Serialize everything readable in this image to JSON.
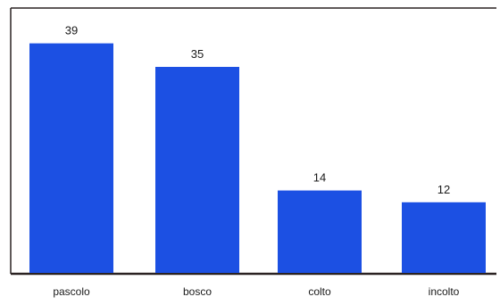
{
  "chart_data": {
    "type": "bar",
    "categories": [
      "pascolo",
      "bosco",
      "colto",
      "incolto"
    ],
    "values": [
      39,
      35,
      14,
      12
    ],
    "data_labels": [
      "39",
      "35",
      "14",
      "12"
    ],
    "title": "",
    "xlabel": "",
    "ylabel": "",
    "ylim": [
      0,
      45
    ],
    "grid": false,
    "legend": "none",
    "bar_color": "#1c50e3",
    "frame_color": "#2a2222"
  }
}
